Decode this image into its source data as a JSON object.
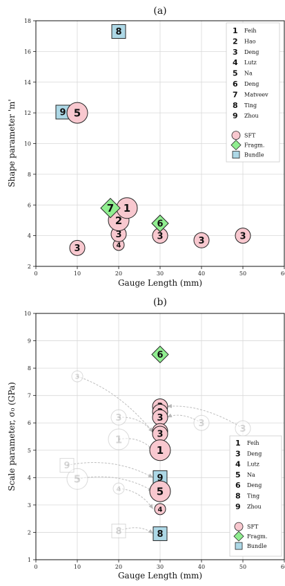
{
  "chart_data": [
    {
      "type": "scatter",
      "title": "(a)",
      "xlabel": "Gauge Length (mm)",
      "ylabel": "Shape parameter 'm'",
      "xlim": [
        0,
        60
      ],
      "ylim": [
        2,
        18
      ],
      "xticks": [
        "0",
        "10",
        "20",
        "30",
        "40",
        "50",
        "60"
      ],
      "yticks": [
        "2",
        "4",
        "6",
        "8",
        "10",
        "12",
        "14",
        "16",
        "18"
      ],
      "grid": true,
      "legend_position": "top-right",
      "legend_authors": [
        {
          "num": "1",
          "name": "Feih"
        },
        {
          "num": "2",
          "name": "Hao"
        },
        {
          "num": "3",
          "name": "Deng"
        },
        {
          "num": "4",
          "name": "Lutz"
        },
        {
          "num": "5",
          "name": "Na"
        },
        {
          "num": "6",
          "name": "Deng"
        },
        {
          "num": "7",
          "name": "Matveev"
        },
        {
          "num": "8",
          "name": "Ting"
        },
        {
          "num": "9",
          "name": "Zhou"
        }
      ],
      "legend_types": [
        {
          "shape": "circle",
          "label": "SFT"
        },
        {
          "shape": "diamond",
          "label": "Fragm."
        },
        {
          "shape": "square",
          "label": "Bundle"
        }
      ],
      "points": [
        {
          "x": 10,
          "y": 3.2,
          "label": "3",
          "shape": "circle",
          "size": "m"
        },
        {
          "x": 20,
          "y": 3.4,
          "label": "4",
          "shape": "circle",
          "size": "s"
        },
        {
          "x": 20,
          "y": 4.1,
          "label": "3",
          "shape": "circle",
          "size": "m"
        },
        {
          "x": 30,
          "y": 4.0,
          "label": "3",
          "shape": "circle",
          "size": "m"
        },
        {
          "x": 40,
          "y": 3.7,
          "label": "3",
          "shape": "circle",
          "size": "m"
        },
        {
          "x": 50,
          "y": 4.0,
          "label": "3",
          "shape": "circle",
          "size": "m"
        },
        {
          "x": 20,
          "y": 5.0,
          "label": "2",
          "shape": "circle",
          "size": "l"
        },
        {
          "x": 22,
          "y": 5.8,
          "label": "1",
          "shape": "circle",
          "size": "l"
        },
        {
          "x": 18,
          "y": 5.8,
          "label": "7",
          "shape": "diamond",
          "size": "l"
        },
        {
          "x": 30,
          "y": 4.8,
          "label": "6",
          "shape": "diamond",
          "size": "m"
        },
        {
          "x": 6.5,
          "y": 12.05,
          "label": "9",
          "shape": "square",
          "size": "m"
        },
        {
          "x": 10,
          "y": 12.0,
          "label": "5",
          "shape": "circle",
          "size": "l"
        },
        {
          "x": 20,
          "y": 17.3,
          "label": "8",
          "shape": "square",
          "size": "m"
        }
      ]
    },
    {
      "type": "scatter",
      "title": "(b)",
      "xlabel": "Gauge Length (mm)",
      "ylabel": "Scale parameter, σ₀ (GPa)",
      "xlim": [
        0,
        60
      ],
      "ylim": [
        1,
        10
      ],
      "xticks": [
        "0",
        "10",
        "20",
        "30",
        "40",
        "50",
        "60"
      ],
      "yticks": [
        "1",
        "2",
        "3",
        "4",
        "5",
        "6",
        "7",
        "8",
        "9",
        "10"
      ],
      "grid": true,
      "legend_position": "lower-right",
      "legend_authors": [
        {
          "num": "1",
          "name": "Feih"
        },
        {
          "num": "3",
          "name": "Deng"
        },
        {
          "num": "4",
          "name": "Lutz"
        },
        {
          "num": "5",
          "name": "Na"
        },
        {
          "num": "6",
          "name": "Deng"
        },
        {
          "num": "8",
          "name": "Ting"
        },
        {
          "num": "9",
          "name": "Zhou"
        }
      ],
      "legend_types": [
        {
          "shape": "circle",
          "label": "SFT"
        },
        {
          "shape": "diamond",
          "label": "Fragm."
        },
        {
          "shape": "square",
          "label": "Bundle"
        }
      ],
      "original_points": [
        {
          "x": 10,
          "y": 7.7,
          "label": "3",
          "shape": "circle",
          "size": "s"
        },
        {
          "x": 20,
          "y": 6.2,
          "label": "3",
          "shape": "circle",
          "size": "m"
        },
        {
          "x": 20,
          "y": 5.4,
          "label": "1",
          "shape": "circle",
          "size": "l"
        },
        {
          "x": 10,
          "y": 3.95,
          "label": "5",
          "shape": "circle",
          "size": "l"
        },
        {
          "x": 7.5,
          "y": 4.45,
          "label": "9",
          "shape": "square",
          "size": "m"
        },
        {
          "x": 20,
          "y": 3.6,
          "label": "4",
          "shape": "circle",
          "size": "s"
        },
        {
          "x": 20,
          "y": 2.05,
          "label": "8",
          "shape": "square",
          "size": "m"
        },
        {
          "x": 40,
          "y": 6.0,
          "label": "3",
          "shape": "circle",
          "size": "m"
        },
        {
          "x": 50,
          "y": 5.8,
          "label": "3",
          "shape": "circle",
          "size": "m"
        }
      ],
      "points": [
        {
          "x": 30,
          "y": 8.5,
          "label": "6",
          "shape": "diamond",
          "size": "m"
        },
        {
          "x": 30,
          "y": 6.6,
          "label": "3",
          "shape": "circle",
          "size": "m"
        },
        {
          "x": 30,
          "y": 6.4,
          "label": "3",
          "shape": "circle",
          "size": "m"
        },
        {
          "x": 30,
          "y": 6.2,
          "label": "3",
          "shape": "circle",
          "size": "m"
        },
        {
          "x": 30,
          "y": 5.7,
          "label": "3",
          "shape": "circle",
          "size": "m"
        },
        {
          "x": 30,
          "y": 5.6,
          "label": "3",
          "shape": "circle",
          "size": "m"
        },
        {
          "x": 30,
          "y": 5.0,
          "label": "1",
          "shape": "circle",
          "size": "l"
        },
        {
          "x": 30,
          "y": 4.0,
          "label": "9",
          "shape": "square",
          "size": "m"
        },
        {
          "x": 30,
          "y": 3.5,
          "label": "5",
          "shape": "circle",
          "size": "l"
        },
        {
          "x": 30,
          "y": 2.85,
          "label": "4",
          "shape": "circle",
          "size": "s"
        },
        {
          "x": 30,
          "y": 1.95,
          "label": "8",
          "shape": "square",
          "size": "m"
        }
      ],
      "arrows": [
        {
          "from": [
            10,
            7.7
          ],
          "to": [
            30,
            5.65
          ]
        },
        {
          "from": [
            20,
            6.2
          ],
          "to": [
            30,
            5.65
          ]
        },
        {
          "from": [
            20,
            5.4
          ],
          "to": [
            30,
            5.0
          ]
        },
        {
          "from": [
            10,
            3.95
          ],
          "to": [
            30,
            3.5
          ]
        },
        {
          "from": [
            7.5,
            4.45
          ],
          "to": [
            30,
            4.0
          ]
        },
        {
          "from": [
            20,
            3.6
          ],
          "to": [
            30,
            2.85
          ]
        },
        {
          "from": [
            20,
            2.05
          ],
          "to": [
            30,
            1.95
          ]
        },
        {
          "from": [
            40,
            6.0
          ],
          "to": [
            30,
            6.2
          ]
        },
        {
          "from": [
            50,
            5.8
          ],
          "to": [
            30,
            6.6
          ]
        }
      ]
    }
  ],
  "colors": {
    "sft": "#f8c8cf",
    "fragm": "#90ee90",
    "bundle": "#add8e6",
    "faded": "#bdbdbd",
    "grid": "#d8d8d8"
  }
}
